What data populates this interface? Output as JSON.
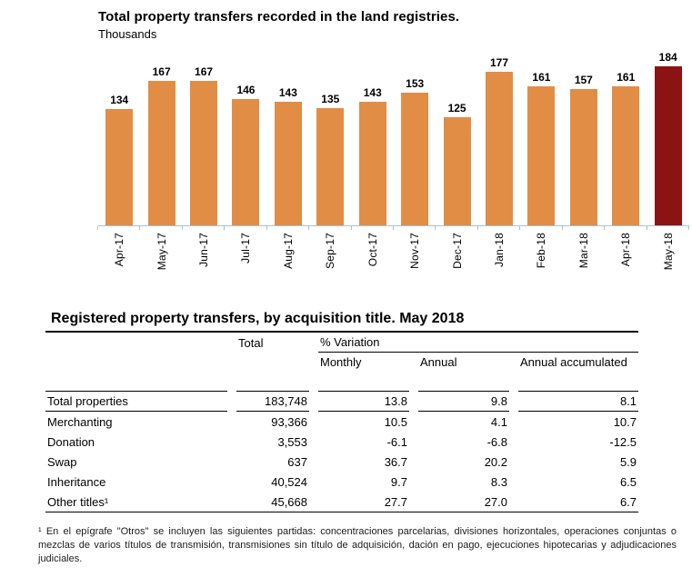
{
  "chart_data": {
    "type": "bar",
    "title": "Total property transfers recorded in the land registries.",
    "subtitle": "Thousands",
    "categories": [
      "Apr-17",
      "May-17",
      "Jun-17",
      "Jul-17",
      "Aug-17",
      "Sep-17",
      "Oct-17",
      "Nov-17",
      "Dec-17",
      "Jan-18",
      "Feb-18",
      "Mar-18",
      "Apr-18",
      "May-18"
    ],
    "values": [
      134,
      167,
      167,
      146,
      143,
      135,
      143,
      153,
      125,
      177,
      161,
      157,
      161,
      184
    ],
    "ylim": [
      0,
      210
    ],
    "value_labels": true,
    "grid": false,
    "legend": false,
    "bar_color": "#e18d46",
    "highlight_index": 13,
    "highlight_color": "#8c1313",
    "axis_color": "#aac2d1"
  },
  "table": {
    "title": "Registered property transfers, by acquisition title. May 2018",
    "col_headers": {
      "total": "Total",
      "variation": "% Variation",
      "monthly": "Monthly",
      "annual": "Annual",
      "annual_accumulated": "Annual accumulated"
    },
    "rows": [
      {
        "label": "Total properties",
        "total": "183,748",
        "monthly": "13.8",
        "annual": "9.8",
        "annual_accumulated": "8.1"
      },
      {
        "label": "Merchanting",
        "total": "93,366",
        "monthly": "10.5",
        "annual": "4.1",
        "annual_accumulated": "10.7"
      },
      {
        "label": "Donation",
        "total": "3,553",
        "monthly": "-6.1",
        "annual": "-6.8",
        "annual_accumulated": "-12.5"
      },
      {
        "label": "Swap",
        "total": "637",
        "monthly": "36.7",
        "annual": "20.2",
        "annual_accumulated": "5.9"
      },
      {
        "label": "Inheritance",
        "total": "40,524",
        "monthly": "9.7",
        "annual": "8.3",
        "annual_accumulated": "6.5"
      },
      {
        "label": "Other titles¹",
        "total": "45,668",
        "monthly": "27.7",
        "annual": "27.0",
        "annual_accumulated": "6.7"
      }
    ]
  },
  "footnote": "¹ En el epígrafe \"Otros\" se incluyen las siguientes partidas: concentraciones parcelarias, divisiones horizontales, operaciones conjuntas o mezclas de varios títulos de transmisión, transmisiones sin título de adquisición, dación en pago, ejecuciones hipotecarias y adjudicaciones judiciales."
}
